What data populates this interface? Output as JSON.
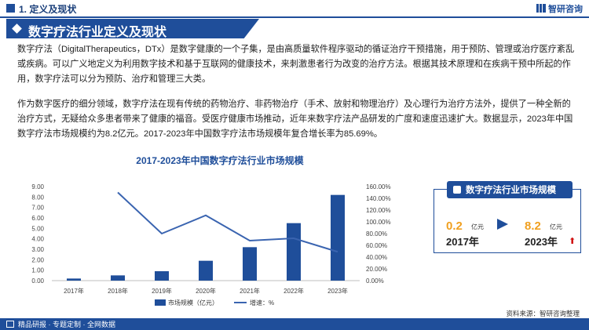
{
  "section": {
    "title": "1. 定义及现状"
  },
  "brand": {
    "name": "智研咨询"
  },
  "banner": {
    "title": "数字疗法行业定义及现状"
  },
  "paragraphs": [
    "数字疗法（DigitalTherapeutics，DTx）是数字健康的一个子集，是由高质量软件程序驱动的循证治疗干预措施，用于预防、管理或治疗医疗紊乱或疾病。可以广义地定义为利用数字技术和基于互联网的健康技术，来刺激患者行为改变的治疗方法。根据其技术原理和在疾病干预中所起的作用，数字疗法可以分为预防、治疗和管理三大类。",
    "作为数字医疗的细分领域，数字疗法在现有传统的药物治疗、非药物治疗（手术、放射和物理治疗）及心理行为治疗方法外，提供了一种全新的治疗方式，无疑给众多患者带来了健康的福音。受医疗健康市场推动，近年来数字疗法产品研发的广度和速度迅速扩大。数据显示，2023年中国数字疗法市场规模约为8.2亿元。2017-2023年中国数字疗法市场规模年复合增长率为85.69%。"
  ],
  "chart_data": {
    "type": "bar",
    "title": "2017-2023年中国数字疗法行业市场规模",
    "categories": [
      "2017年",
      "2018年",
      "2019年",
      "2020年",
      "2021年",
      "2022年",
      "2023年"
    ],
    "series": [
      {
        "name": "市场规模（亿元）",
        "type": "bar",
        "axis": "left",
        "values": [
          0.2,
          0.5,
          0.9,
          1.9,
          3.2,
          5.5,
          8.2
        ],
        "color": "#1f4e9a"
      },
      {
        "name": "增速：%",
        "type": "line",
        "axis": "right",
        "values": [
          null,
          150.0,
          80.0,
          111.0,
          68.0,
          72.0,
          49.0
        ],
        "color": "#3a64b0"
      }
    ],
    "y_left": {
      "min": 0,
      "max": 9,
      "ticks": [
        "0.00",
        "1.00",
        "2.00",
        "3.00",
        "4.00",
        "5.00",
        "6.00",
        "7.00",
        "8.00",
        "9.00"
      ]
    },
    "y_right": {
      "min": 0,
      "max": 160,
      "ticks": [
        "0.00%",
        "20.00%",
        "40.00%",
        "60.00%",
        "80.00%",
        "100.00%",
        "120.00%",
        "140.00%",
        "160.00%"
      ]
    },
    "legend_position": "bottom",
    "grid": false
  },
  "kpi": {
    "title": "数字疗法行业市场规模",
    "start_value": "0.2",
    "start_unit": "亿元",
    "start_year": "2017年",
    "end_value": "8.2",
    "end_unit": "亿元",
    "end_year": "2023年",
    "trend_symbol": "⬆"
  },
  "source": "资料来源：智研咨询整理",
  "footer": {
    "text": "精品研报 · 专题定制 · 全网数据"
  },
  "colors": {
    "primary": "#1f4e9a",
    "highlight": "#f0a020",
    "up": "#d01010"
  }
}
